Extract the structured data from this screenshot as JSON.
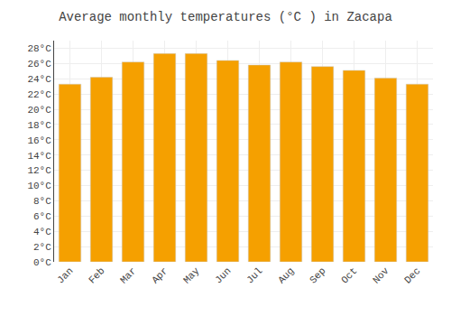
{
  "chart_data": {
    "type": "bar",
    "title": "Average monthly temperatures (°C ) in Zacapa",
    "categories": [
      "Jan",
      "Feb",
      "Mar",
      "Apr",
      "May",
      "Jun",
      "Jul",
      "Aug",
      "Sep",
      "Oct",
      "Nov",
      "Dec"
    ],
    "values": [
      23.3,
      24.2,
      26.2,
      27.3,
      27.3,
      26.4,
      25.8,
      26.2,
      25.6,
      25.1,
      24.1,
      23.3
    ],
    "color": "#F5A000",
    "ylim": [
      0,
      29
    ],
    "yticks": [
      {
        "value": 0,
        "label": "0°C"
      },
      {
        "value": 2,
        "label": "2°C"
      },
      {
        "value": 4,
        "label": "4°C"
      },
      {
        "value": 6,
        "label": "6°C"
      },
      {
        "value": 8,
        "label": "8°C"
      },
      {
        "value": 10,
        "label": "10°C"
      },
      {
        "value": 12,
        "label": "12°C"
      },
      {
        "value": 14,
        "label": "14°C"
      },
      {
        "value": 16,
        "label": "16°C"
      },
      {
        "value": 18,
        "label": "18°C"
      },
      {
        "value": 20,
        "label": "20°C"
      },
      {
        "value": 22,
        "label": "22°C"
      },
      {
        "value": 24,
        "label": "24°C"
      },
      {
        "value": 26,
        "label": "26°C"
      },
      {
        "value": 28,
        "label": "28°C"
      }
    ],
    "grid": true
  }
}
